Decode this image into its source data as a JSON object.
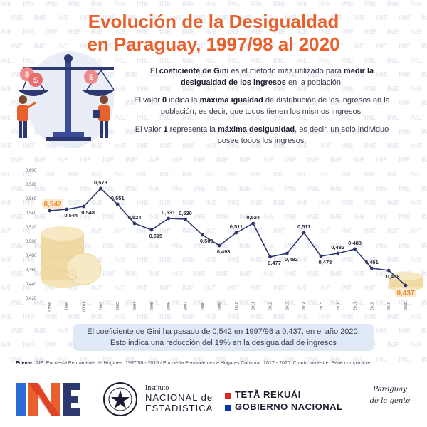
{
  "header": {
    "title_line1": "Evolución de la Desigualdad",
    "title_line2": "en Paraguay, 1997/98 al 2020"
  },
  "intro": {
    "p1": [
      {
        "t": "El ",
        "b": false
      },
      {
        "t": "coeficiente de Gini",
        "b": true
      },
      {
        "t": " es el método más utilizado para ",
        "b": false
      },
      {
        "t": "medir la desigualdad de los ingresos",
        "b": true
      },
      {
        "t": " en la población.",
        "b": false
      }
    ],
    "p2": [
      {
        "t": "El valor ",
        "b": false
      },
      {
        "t": "0",
        "b": true
      },
      {
        "t": " indica la ",
        "b": false
      },
      {
        "t": "máxima igualdad",
        "b": true
      },
      {
        "t": " de distribución de los ingresos en la población, es decir, que todos tienen los mismos ingresos.",
        "b": false
      }
    ],
    "p3": [
      {
        "t": "El valor ",
        "b": false
      },
      {
        "t": "1",
        "b": true
      },
      {
        "t": " representa la ",
        "b": false
      },
      {
        "t": "máxima desigualdad",
        "b": true
      },
      {
        "t": ", es decir, un solo individuo posee todos los ingresos.",
        "b": false
      }
    ]
  },
  "watermark": "INE",
  "chart_data": {
    "type": "line",
    "categories": [
      "1997/98",
      "1999",
      "2000/01",
      "2002",
      "2003",
      "2004",
      "2005",
      "2006",
      "2007",
      "2008",
      "2009",
      "2010",
      "2011",
      "2012",
      "2013",
      "2014",
      "2015",
      "2016",
      "2017",
      "2018",
      "2019",
      "2020"
    ],
    "values": [
      0.542,
      0.544,
      0.548,
      0.573,
      0.551,
      0.524,
      0.515,
      0.531,
      0.53,
      0.508,
      0.493,
      0.511,
      0.524,
      0.477,
      0.482,
      0.511,
      0.478,
      0.482,
      0.488,
      0.461,
      0.458,
      0.437
    ],
    "value_labels": [
      "0,542",
      "0,544",
      "0,548",
      "0,573",
      "0,551",
      "0,524",
      "0,515",
      "0,531",
      "0,530",
      "0,508",
      "0,493",
      "0,511",
      "0,524",
      "0,477",
      "0,482",
      "0,511",
      "0,478",
      "0,482",
      "0,488",
      "0,461",
      "0,458",
      "0,437"
    ],
    "label_side": [
      "above",
      "below",
      "below",
      "above",
      "above",
      "above",
      "below",
      "above",
      "above",
      "below",
      "below",
      "above",
      "above",
      "below",
      "below",
      "above",
      "below",
      "above",
      "above",
      "above",
      "below",
      "below"
    ],
    "highlighted": [
      0,
      21
    ],
    "yticks": [
      "0,600",
      "0,580",
      "0,560",
      "0,540",
      "0,520",
      "0,500",
      "0,480",
      "0,460",
      "0,440",
      "0,420"
    ],
    "ylim": [
      0.42,
      0.6
    ],
    "grid": false,
    "line_color": "#2d3770",
    "highlight_color": "#e8892c"
  },
  "summary": {
    "line1": "El coeficiente de Gini ha pasado de 0,542 en 1997/98 a 0,437, en el año 2020.",
    "line2": "Esto indica una reducción del 19% en la desigualdad de ingresos"
  },
  "source": {
    "label": "Fuente:",
    "text": " INE. Encuesta Permanente de Hogares. 1997/98 - 2016 / Encuesta Permanente de Hogares Continua. 2017 - 2020. Cuarto trimestre. Serie comparable"
  },
  "footer": {
    "ine_logo_text": "INE",
    "seal_text": "REPÚBLICA DEL PARAGUAY",
    "institute_l1": "Instituto",
    "institute_l2": "NACIONAL de",
    "institute_l3": "ESTADÍSTICA",
    "gov_l1": "TETÃ REKUÁI",
    "gov_l2": "GOBIERNO NACIONAL",
    "slogan_l1": "Paraguay",
    "slogan_l2": "de la gente"
  },
  "colors": {
    "title": "#e8602c",
    "navy": "#2d3770",
    "orange": "#e8892c",
    "summary_bg": "#dfeaf6",
    "flag_red": "#d52b1e",
    "flag_blue": "#0038a8"
  }
}
